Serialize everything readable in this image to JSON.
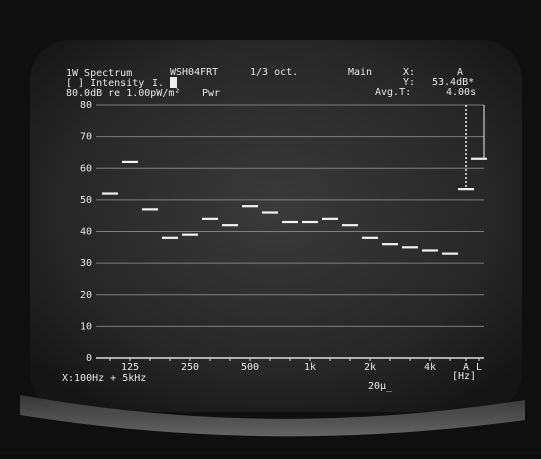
{
  "chart_data": {
    "type": "bar",
    "title": "1W Spectrum",
    "annotations": [
      "WSH04FRT",
      "1/3 oct.",
      "Main",
      "X:",
      "A",
      "[ ] Intensity",
      "I.",
      "Y:",
      "53.4dB*",
      "80.0dB re 1.00pW/m²",
      "Pwr",
      "Avg.T:",
      "4.00s",
      "[Hz]",
      "X:100Hz + 5kHz",
      "20µ_"
    ],
    "categories": [
      null,
      "125",
      null,
      null,
      "250",
      null,
      null,
      "500",
      null,
      null,
      "1k",
      null,
      null,
      "2k",
      null,
      null,
      "4k",
      null,
      "A",
      "L"
    ],
    "values": [
      52,
      62,
      47,
      38,
      39,
      44,
      42,
      48,
      46,
      43,
      43,
      44,
      42,
      38,
      36,
      35,
      34,
      33,
      53.4,
      63
    ],
    "color": "#f2f2f2",
    "ylim": [
      0,
      80
    ],
    "yticks": [
      0,
      10,
      20,
      30,
      40,
      50,
      60,
      70,
      80
    ],
    "grid": true
  }
}
